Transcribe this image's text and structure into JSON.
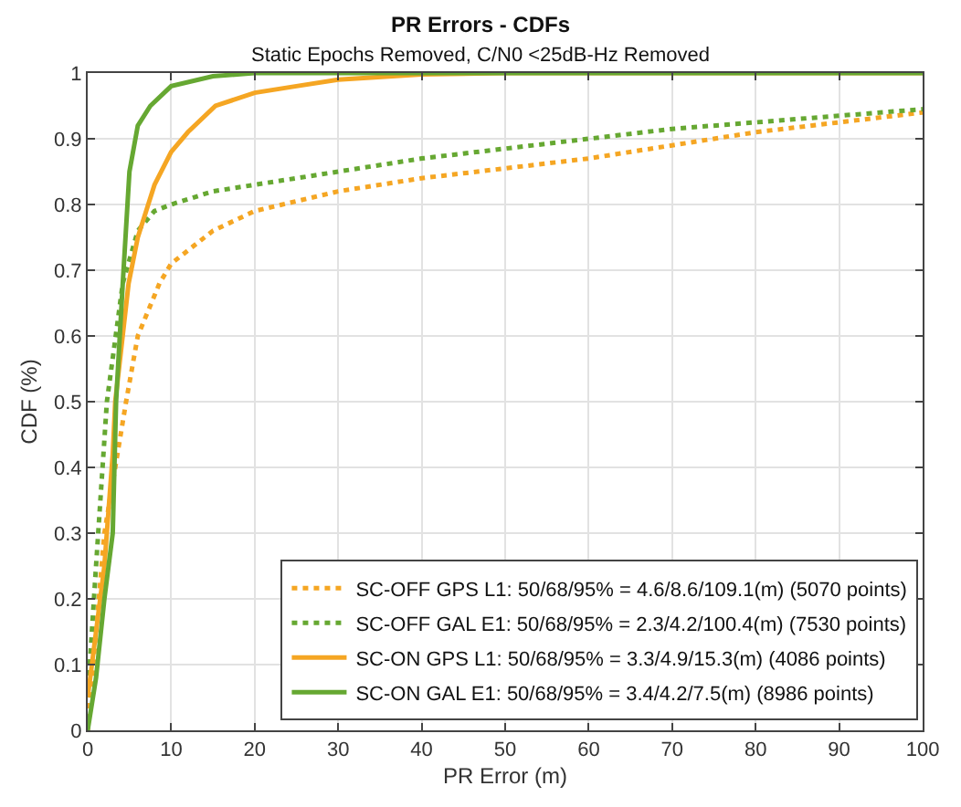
{
  "chart_data": {
    "type": "line",
    "title": "PR Errors - CDFs",
    "subtitle": "Static Epochs Removed, C/N0 <25dB-Hz Removed",
    "xlabel": "PR Error (m)",
    "ylabel": "CDF (%)",
    "xlim": [
      0,
      100
    ],
    "xticks": [
      0,
      10,
      20,
      30,
      40,
      50,
      60,
      70,
      80,
      90,
      100
    ],
    "ylim": [
      0,
      1
    ],
    "yticks": [
      0,
      0.1,
      0.2,
      0.3,
      0.4,
      0.5,
      0.6,
      0.7,
      0.8,
      0.9,
      1
    ],
    "grid": true,
    "legend": "bottom right",
    "series": [
      {
        "name": "SC-OFF GPS L1: 50/68/95% = 4.6/8.6/109.1(m) (5070 points)",
        "color": "#f5a623",
        "line_style": "dotted",
        "x": [
          0,
          2,
          4.6,
          6,
          8.6,
          10,
          15,
          20,
          30,
          40,
          50,
          60,
          70,
          80,
          90,
          100
        ],
        "values": [
          0,
          0.3,
          0.5,
          0.6,
          0.68,
          0.71,
          0.76,
          0.79,
          0.82,
          0.84,
          0.855,
          0.87,
          0.89,
          0.91,
          0.925,
          0.94
        ]
      },
      {
        "name": "SC-OFF GAL E1: 50/68/95% = 2.3/4.2/100.4(m) (7530 points)",
        "color": "#66a832",
        "line_style": "dotted",
        "x": [
          0,
          1,
          2.3,
          4.2,
          6,
          8,
          10,
          15,
          20,
          30,
          40,
          50,
          60,
          70,
          80,
          90,
          100
        ],
        "values": [
          0.05,
          0.25,
          0.5,
          0.68,
          0.76,
          0.79,
          0.8,
          0.82,
          0.83,
          0.85,
          0.87,
          0.885,
          0.9,
          0.915,
          0.925,
          0.935,
          0.945
        ]
      },
      {
        "name": "SC-ON GPS L1: 50/68/95% = 3.3/4.9/15.3(m) (4086 points)",
        "color": "#f5a623",
        "line_style": "solid",
        "x": [
          0,
          2,
          3,
          3.3,
          4.9,
          6,
          8,
          10,
          12,
          15.3,
          20,
          25,
          30,
          40,
          50,
          100
        ],
        "values": [
          0.05,
          0.25,
          0.42,
          0.5,
          0.68,
          0.75,
          0.83,
          0.88,
          0.91,
          0.95,
          0.97,
          0.98,
          0.99,
          0.998,
          1,
          1
        ]
      },
      {
        "name": "SC-ON GAL E1: 50/68/95% = 3.4/4.2/7.5(m) (8986 points)",
        "color": "#66a832",
        "line_style": "solid",
        "x": [
          0,
          1,
          2,
          3,
          3.4,
          4.2,
          5,
          6,
          7.5,
          10,
          15,
          20,
          100
        ],
        "values": [
          0,
          0.08,
          0.2,
          0.3,
          0.5,
          0.68,
          0.85,
          0.92,
          0.95,
          0.98,
          0.995,
          1,
          1
        ]
      }
    ]
  }
}
